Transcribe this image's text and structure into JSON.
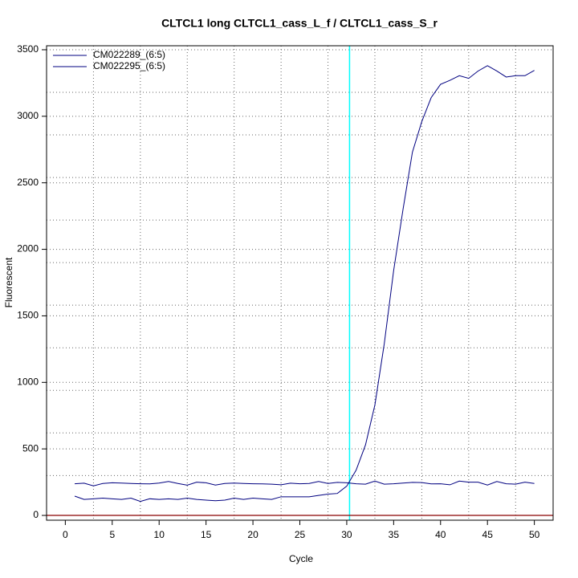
{
  "chart_data": {
    "type": "line",
    "title": "CLTCL1 long CLTCL1_cass_L_f / CLTCL1_cass_S_r",
    "xlabel": "Cycle",
    "ylabel": "Fluorescent",
    "x": [
      1,
      2,
      3,
      4,
      5,
      6,
      7,
      8,
      9,
      10,
      11,
      12,
      13,
      14,
      15,
      16,
      17,
      18,
      19,
      20,
      21,
      22,
      23,
      24,
      25,
      26,
      27,
      28,
      29,
      30,
      31,
      32,
      33,
      34,
      35,
      36,
      37,
      38,
      39,
      40,
      41,
      42,
      43,
      44,
      45,
      46,
      47,
      48,
      49,
      50
    ],
    "series": [
      {
        "name": "CM022289_(6:5)",
        "color": "#000080",
        "values": [
          145,
          120,
          125,
          130,
          125,
          120,
          130,
          105,
          125,
          120,
          125,
          120,
          130,
          120,
          115,
          110,
          115,
          130,
          120,
          130,
          125,
          120,
          140,
          140,
          140,
          140,
          150,
          160,
          165,
          220,
          340,
          530,
          830,
          1290,
          1840,
          2300,
          2730,
          2960,
          3140,
          3240,
          3270,
          3305,
          3285,
          3340,
          3380,
          3340,
          3295,
          3305,
          3305,
          3345
        ]
      },
      {
        "name": "CM022295_(6:5)",
        "color": "#000080",
        "values": [
          238,
          242,
          222,
          240,
          245,
          243,
          240,
          238,
          237,
          243,
          255,
          240,
          227,
          250,
          245,
          228,
          240,
          243,
          240,
          238,
          237,
          235,
          230,
          242,
          238,
          240,
          255,
          240,
          248,
          245,
          238,
          235,
          258,
          235,
          238,
          243,
          248,
          247,
          237,
          238,
          230,
          258,
          250,
          250,
          228,
          255,
          238,
          235,
          250,
          240
        ]
      }
    ],
    "xlim": [
      -2,
      52
    ],
    "xticks": [
      0,
      5,
      10,
      15,
      20,
      25,
      30,
      35,
      40,
      45,
      50
    ],
    "ylim": [
      -36,
      3530
    ],
    "yticks": [
      0,
      500,
      1000,
      1500,
      2000,
      2500,
      3000,
      3500
    ],
    "xgrid": [
      3,
      8,
      13,
      18,
      23,
      28,
      33,
      38,
      43,
      48
    ],
    "ygrid": [
      300,
      620,
      940,
      1260,
      1580,
      1900,
      2220,
      2540,
      2860,
      3180
    ],
    "vlines": [
      {
        "value": 30.3,
        "color": "#00ffff"
      }
    ],
    "hlines": [
      {
        "value": 0,
        "color": "#8b0000"
      }
    ],
    "legend": "top-left"
  }
}
